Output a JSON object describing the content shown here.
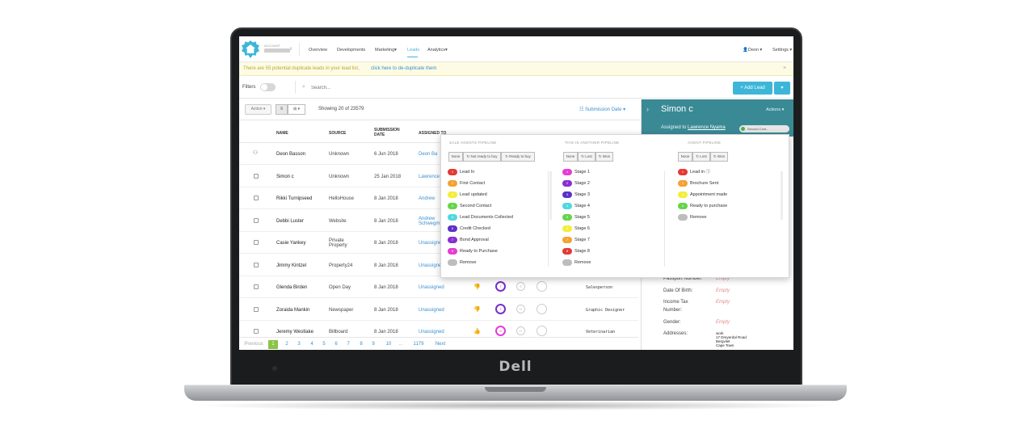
{
  "brand": {
    "logo_mark": "Dell"
  },
  "app": {
    "account_label": "ACCOUNT",
    "nav": [
      "Overview",
      "Developments",
      "Marketing",
      "Leads",
      "Analytics"
    ],
    "nav_marketing_suffix": "▾",
    "user_menu": "Deon ▾",
    "settings_menu": "Settings ▾"
  },
  "alert": {
    "text": "There are 55 potential duplicate leads in your lead list,",
    "link": "click here to de-duplicate them",
    "close": "×"
  },
  "toolbar": {
    "filters_label": "Filters",
    "search_placeholder": "Search...",
    "add_lead": "+ Add Lead",
    "add_caret": "▾"
  },
  "subbar": {
    "action": "Action ▾",
    "view_list": "≡",
    "view_grid": "⊞ ▾",
    "showing": "Showing 20 of 23579",
    "sort": "☷ Submission Date ▾"
  },
  "table": {
    "headers": {
      "name": "NAME",
      "source": "SOURCE",
      "submission_date_1": "SUBMISSION",
      "submission_date_2": "DATE",
      "assigned": "ASSIGNED TO"
    },
    "rows": [
      {
        "name": "Deon Basson",
        "source": "Unknown",
        "date": "6 Jun 2018",
        "assigned": "Deon Ba",
        "assigned2": ""
      },
      {
        "name": "Simon c",
        "source": "Unknown",
        "date": "25 Jan 2018",
        "assigned": "Lawrence",
        "assigned2": ""
      },
      {
        "name": "Rikki Turnipseed",
        "source": "HelloHouse",
        "date": "8 Jan 2018",
        "assigned": "Andrew",
        "assigned2": ""
      },
      {
        "name": "Debbi Luster",
        "source": "Website",
        "date": "8 Jan 2018",
        "assigned": "Andrew",
        "assigned2": "Schwegm"
      },
      {
        "name": "Casie Yankey",
        "source": "Private",
        "source2": "Property",
        "date": "8 Jan 2018",
        "assigned": "Unassigned",
        "assigned2": ""
      },
      {
        "name": "Jimmy Kintzel",
        "source": "Property24",
        "date": "8 Jan 2018",
        "assigned": "Unassigned",
        "assigned2": ""
      },
      {
        "name": "Glenda Birden",
        "source": "Open Day",
        "date": "8 Jan 2018",
        "assigned": "Unassigned",
        "assigned2": "",
        "job": "Salesperson",
        "stage": "7"
      },
      {
        "name": "Zoraida Mankin",
        "source": "Newspaper",
        "date": "8 Jan 2018",
        "assigned": "Unassigned",
        "assigned2": "",
        "job": "Graphic Designer",
        "stage": "7"
      },
      {
        "name": "Jeremy Westlake",
        "source": "Billboard",
        "date": "8 Jan 2018",
        "assigned": "Unassigned",
        "assigned2": "",
        "job": "Veterinarian",
        "stage": "8"
      }
    ]
  },
  "pager": {
    "previous": "Previous",
    "pages": [
      "1",
      "2",
      "3",
      "4",
      "5",
      "6",
      "7",
      "8",
      "9",
      "10"
    ],
    "ellipsis": "...",
    "last": "1179",
    "next": "Next",
    "current": "1"
  },
  "right_panel": {
    "name": "Simon c",
    "actions": "Actions ▾",
    "assigned_prefix": "Assigned to",
    "assigned_name": "Lawrence Nyama",
    "pill": "Second Cont...",
    "fields": [
      {
        "label": "Passport Number:",
        "value": "Empty"
      },
      {
        "label": "Date Of Birth:",
        "value": "Empty"
      },
      {
        "label": "Income Tax",
        "value": "Empty"
      },
      {
        "label": "Number:",
        "value": ""
      },
      {
        "label": "Gender:",
        "value": "Empty"
      },
      {
        "label": "Addresses:",
        "value": ""
      }
    ],
    "address": [
      "work",
      "17 Dreyerdal Road",
      "Bergvliet",
      "Cape Town"
    ]
  },
  "popup": {
    "columns": [
      {
        "title": "SALE AGENTS PIPELINE",
        "filters": [
          "None",
          "↻ Not ready to buy",
          "↻ Ready to buy"
        ],
        "stages": [
          {
            "num": "1",
            "label": "Lead In",
            "color": "#e53935"
          },
          {
            "num": "2",
            "label": "First Contact",
            "color": "#f4a231"
          },
          {
            "num": "3",
            "label": "Lead updated",
            "color": "#f2ee3a"
          },
          {
            "num": "4",
            "label": "Second Contact",
            "color": "#66d44a"
          },
          {
            "num": "5",
            "label": "Lead Documents Collected",
            "color": "#4fd8e0"
          },
          {
            "num": "6",
            "label": "Credit Checked",
            "color": "#5a32c8"
          },
          {
            "num": "7",
            "label": "Bond Approval",
            "color": "#8a2fcf"
          },
          {
            "num": "8",
            "label": "Ready to Purchase",
            "color": "#e43cd6"
          },
          {
            "num": "",
            "label": "Remove",
            "color": "#bdbdbd"
          }
        ]
      },
      {
        "title": "THIS IS ANOTHER PIPELINE",
        "filters": [
          "None",
          "↻ Lost",
          "↻ Won"
        ],
        "stages": [
          {
            "num": "1",
            "label": "Stage 1",
            "color": "#e43cd6"
          },
          {
            "num": "2",
            "label": "Stage 2",
            "color": "#8a2fcf"
          },
          {
            "num": "3",
            "label": "Stage 3",
            "color": "#5a32c8"
          },
          {
            "num": "4",
            "label": "Stage 4",
            "color": "#4fd8e0"
          },
          {
            "num": "5",
            "label": "Stage 5",
            "color": "#66d44a"
          },
          {
            "num": "6",
            "label": "Stage 6",
            "color": "#f2ee3a"
          },
          {
            "num": "7",
            "label": "Stage 7",
            "color": "#f4a231"
          },
          {
            "num": "8",
            "label": "Stage 8",
            "color": "#e53935"
          },
          {
            "num": "",
            "label": "Remove",
            "color": "#bdbdbd"
          }
        ]
      },
      {
        "title": "AGENT PIPELINE",
        "filters": [
          "None",
          "↻ Lost",
          "↻ Won"
        ],
        "stages": [
          {
            "num": "1",
            "label": "Lead in ⓘ",
            "color": "#e53935"
          },
          {
            "num": "2",
            "label": "Brochure Sent",
            "color": "#f4a231"
          },
          {
            "num": "3",
            "label": "Appointment made",
            "color": "#f2ee3a"
          },
          {
            "num": "4",
            "label": "Ready to purchase",
            "color": "#66d44a"
          },
          {
            "num": "",
            "label": "Remove",
            "color": "#bdbdbd"
          }
        ]
      }
    ]
  },
  "colors": {
    "accent": "#3cb6d8",
    "link": "#3a8fd0",
    "panel_header": "#3a8a96",
    "pager_current": "#8bc34a"
  }
}
